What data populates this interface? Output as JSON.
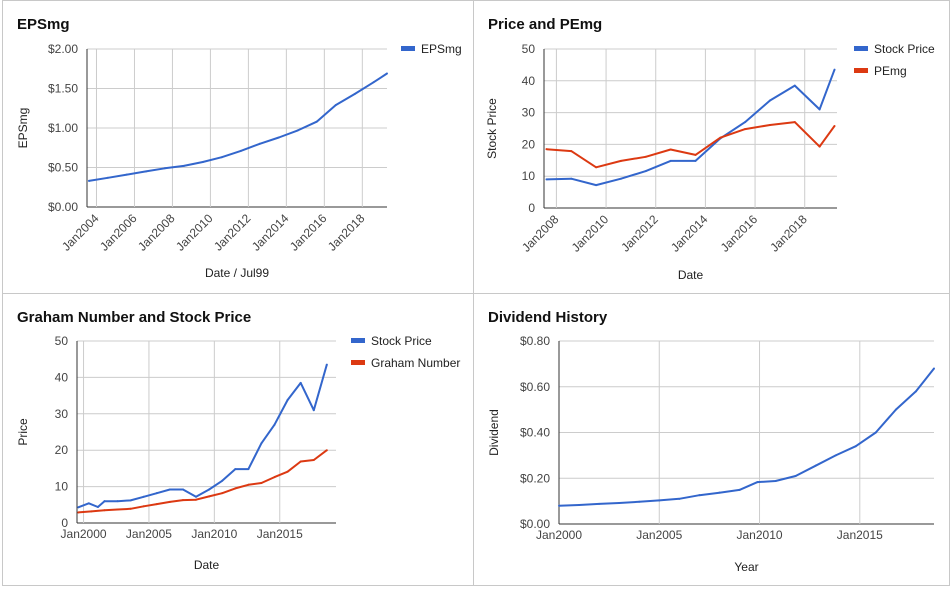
{
  "chart_data": [
    {
      "type": "line",
      "title": "EPSmg",
      "xlabel": "Date / Jul99",
      "ylabel": "EPSmg",
      "ylim": [
        0,
        2
      ],
      "xlim": [
        2003.5,
        2019.3
      ],
      "yticks": [
        0,
        0.5,
        1,
        1.5,
        2
      ],
      "ytick_labels": [
        "$0.00",
        "$0.50",
        "$1.00",
        "$1.50",
        "$2.00"
      ],
      "xticks": [
        2004,
        2006,
        2008,
        2010,
        2012,
        2014,
        2016,
        2018
      ],
      "xtick_labels": [
        "Jan2004",
        "Jan2006",
        "Jan2008",
        "Jan2010",
        "Jan2012",
        "Jan2014",
        "Jan2016",
        "Jan2018"
      ],
      "xtick_rotated": true,
      "grid": true,
      "legend": "top-right",
      "series": [
        {
          "name": "EPSmg",
          "color": "#3366cc",
          "x": [
            2003.6,
            2004.6,
            2005.6,
            2006.6,
            2007.6,
            2008.6,
            2009.6,
            2010.6,
            2011.6,
            2012.6,
            2013.6,
            2014.6,
            2015.6,
            2016.6,
            2017.6,
            2018.6,
            2019.3
          ],
          "values": [
            0.33,
            0.37,
            0.41,
            0.45,
            0.49,
            0.52,
            0.57,
            0.63,
            0.71,
            0.8,
            0.88,
            0.97,
            1.08,
            1.29,
            1.43,
            1.58,
            1.69
          ]
        }
      ]
    },
    {
      "type": "line",
      "title": "Price and PEmg",
      "xlabel": "Date",
      "ylabel": "Stock Price",
      "ylim": [
        0,
        50
      ],
      "xlim": [
        2007.5,
        2019.3
      ],
      "yticks": [
        0,
        10,
        20,
        30,
        40,
        50
      ],
      "ytick_labels": [
        "0",
        "10",
        "20",
        "30",
        "40",
        "50"
      ],
      "xticks": [
        2008,
        2010,
        2012,
        2014,
        2016,
        2018
      ],
      "xtick_labels": [
        "Jan2008",
        "Jan2010",
        "Jan2012",
        "Jan2014",
        "Jan2016",
        "Jan2018"
      ],
      "xtick_rotated": true,
      "grid": true,
      "legend": "top-right",
      "series": [
        {
          "name": "Stock Price",
          "color": "#3366cc",
          "x": [
            2007.6,
            2008.6,
            2009.6,
            2010.6,
            2011.6,
            2012.6,
            2013.6,
            2014.6,
            2015.6,
            2016.6,
            2017.6,
            2018.6,
            2019.2
          ],
          "values": [
            9,
            9.2,
            7.2,
            9.2,
            11.6,
            14.8,
            14.8,
            21.9,
            27,
            33.8,
            38.5,
            31,
            43.5
          ]
        },
        {
          "name": "PEmg",
          "color": "#dc3912",
          "x": [
            2007.6,
            2008.6,
            2009.6,
            2010.6,
            2011.6,
            2012.6,
            2013.6,
            2014.6,
            2015.6,
            2016.6,
            2017.6,
            2018.6,
            2019.2
          ],
          "values": [
            18.5,
            17.9,
            12.8,
            14.8,
            16.1,
            18.4,
            16.7,
            22.1,
            24.8,
            26.1,
            27,
            19.3,
            25.8
          ]
        }
      ]
    },
    {
      "type": "line",
      "title": "Graham Number and Stock Price",
      "xlabel": "Date",
      "ylabel": "Price",
      "ylim": [
        0,
        50
      ],
      "xlim": [
        1999.5,
        2019.3
      ],
      "yticks": [
        0,
        10,
        20,
        30,
        40,
        50
      ],
      "ytick_labels": [
        "0",
        "10",
        "20",
        "30",
        "40",
        "50"
      ],
      "xticks": [
        2000,
        2005,
        2010,
        2015
      ],
      "xtick_labels": [
        "Jan2000",
        "Jan2005",
        "Jan2010",
        "Jan2015"
      ],
      "xtick_rotated": false,
      "grid": true,
      "legend": "top-right",
      "series": [
        {
          "name": "Stock Price",
          "color": "#3366cc",
          "x": [
            1999.6,
            2000.4,
            2001.1,
            2001.6,
            2002.6,
            2003.6,
            2004.6,
            2005.6,
            2006.6,
            2007.6,
            2008.6,
            2009.6,
            2010.6,
            2011.6,
            2012.6,
            2013.6,
            2014.6,
            2015.6,
            2016.6,
            2017.6,
            2018.6
          ],
          "values": [
            4.3,
            5.4,
            4.4,
            6,
            6,
            6.2,
            7.2,
            8.2,
            9.2,
            9.2,
            7.2,
            9.2,
            11.6,
            14.8,
            14.8,
            21.9,
            27,
            33.8,
            38.5,
            31,
            43.5
          ]
        },
        {
          "name": "Graham Number",
          "color": "#dc3912",
          "x": [
            1999.6,
            2000.6,
            2001.6,
            2002.6,
            2003.6,
            2004.6,
            2005.6,
            2006.6,
            2007.6,
            2008.6,
            2009.6,
            2010.6,
            2011.6,
            2012.6,
            2013.6,
            2014.6,
            2015.6,
            2016.6,
            2017.6,
            2018.6
          ],
          "values": [
            2.9,
            3.2,
            3.5,
            3.7,
            3.9,
            4.6,
            5.2,
            5.8,
            6.3,
            6.4,
            7.3,
            8.2,
            9.5,
            10.5,
            11,
            12.6,
            14.1,
            16.9,
            17.3,
            20
          ]
        }
      ]
    },
    {
      "type": "line",
      "title": "Dividend History",
      "xlabel": "Year",
      "ylabel": "Dividend",
      "ylim": [
        0,
        0.8
      ],
      "xlim": [
        2000,
        2018.7
      ],
      "yticks": [
        0,
        0.2,
        0.4,
        0.6,
        0.8
      ],
      "ytick_labels": [
        "$0.00",
        "$0.20",
        "$0.40",
        "$0.60",
        "$0.80"
      ],
      "xticks": [
        2000,
        2005,
        2010,
        2015
      ],
      "xtick_labels": [
        "Jan2000",
        "Jan2005",
        "Jan2010",
        "Jan2015"
      ],
      "xtick_rotated": false,
      "grid": true,
      "legend": "none",
      "series": [
        {
          "name": "",
          "color": "#3366cc",
          "x": [
            2000,
            2001,
            2002,
            2003,
            2004,
            2005,
            2006,
            2007,
            2008,
            2009,
            2009.9,
            2010.8,
            2011.8,
            2012.8,
            2013.8,
            2014.8,
            2015.8,
            2016.8,
            2017.8,
            2018.7
          ],
          "values": [
            0.08,
            0.083,
            0.088,
            0.092,
            0.097,
            0.103,
            0.11,
            0.126,
            0.137,
            0.149,
            0.183,
            0.188,
            0.21,
            0.255,
            0.3,
            0.34,
            0.4,
            0.5,
            0.58,
            0.68
          ]
        }
      ]
    }
  ]
}
